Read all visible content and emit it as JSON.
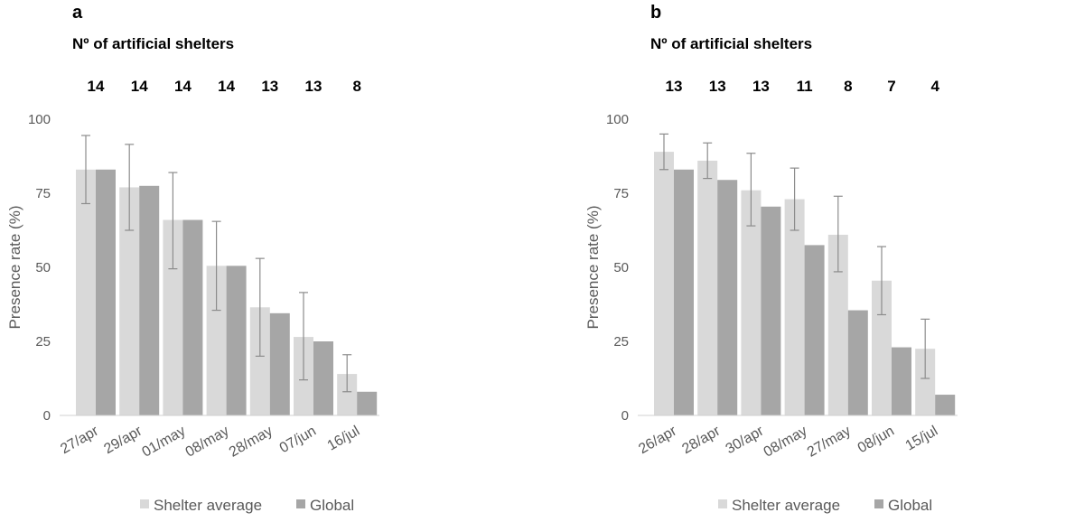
{
  "chart_data": [
    {
      "type": "bar",
      "panel_label": "a",
      "subtitle": "Nº of artificial shelters",
      "shelter_counts": [
        "14",
        "14",
        "14",
        "14",
        "13",
        "13",
        "8"
      ],
      "categories": [
        "27/apr",
        "29/apr",
        "01/may",
        "08/may",
        "28/may",
        "07/jun",
        "16/jul"
      ],
      "series": [
        {
          "name": "Shelter average",
          "color": "#d9d9d9",
          "values": [
            83,
            77,
            66,
            50.5,
            36.5,
            26.5,
            14
          ],
          "error_low": [
            71.5,
            62.5,
            49.5,
            35.5,
            20,
            12,
            8
          ],
          "error_high": [
            94.5,
            91.5,
            82,
            65.5,
            53,
            41.5,
            20.5
          ]
        },
        {
          "name": "Global",
          "color": "#a6a6a6",
          "values": [
            83,
            77.5,
            66,
            50.5,
            34.5,
            25,
            8
          ]
        }
      ],
      "ylabel": "Presence rate (%)",
      "ylim": [
        0,
        100
      ],
      "yticks": [
        "0",
        "25",
        "50",
        "75",
        "100"
      ],
      "grid": false,
      "legend": "bottom"
    },
    {
      "type": "bar",
      "panel_label": "b",
      "subtitle": "Nº of artificial shelters",
      "shelter_counts": [
        "13",
        "13",
        "13",
        "11",
        "8",
        "7",
        "4"
      ],
      "categories": [
        "26/apr",
        "28/apr",
        "30/apr",
        "08/may",
        "27/may",
        "08/jun",
        "15/jul"
      ],
      "series": [
        {
          "name": "Shelter average",
          "color": "#d9d9d9",
          "values": [
            89,
            86,
            76,
            73,
            61,
            45.5,
            22.5
          ],
          "error_low": [
            83,
            80,
            64,
            62.5,
            48.5,
            34,
            12.5
          ],
          "error_high": [
            95,
            92,
            88.5,
            83.5,
            74,
            57,
            32.5
          ]
        },
        {
          "name": "Global",
          "color": "#a6a6a6",
          "values": [
            83,
            79.5,
            70.5,
            57.5,
            35.5,
            23,
            7
          ]
        }
      ],
      "ylabel": "Presence rate (%)",
      "ylim": [
        0,
        100
      ],
      "yticks": [
        "0",
        "25",
        "50",
        "75",
        "100"
      ],
      "grid": false,
      "legend": "bottom"
    }
  ]
}
